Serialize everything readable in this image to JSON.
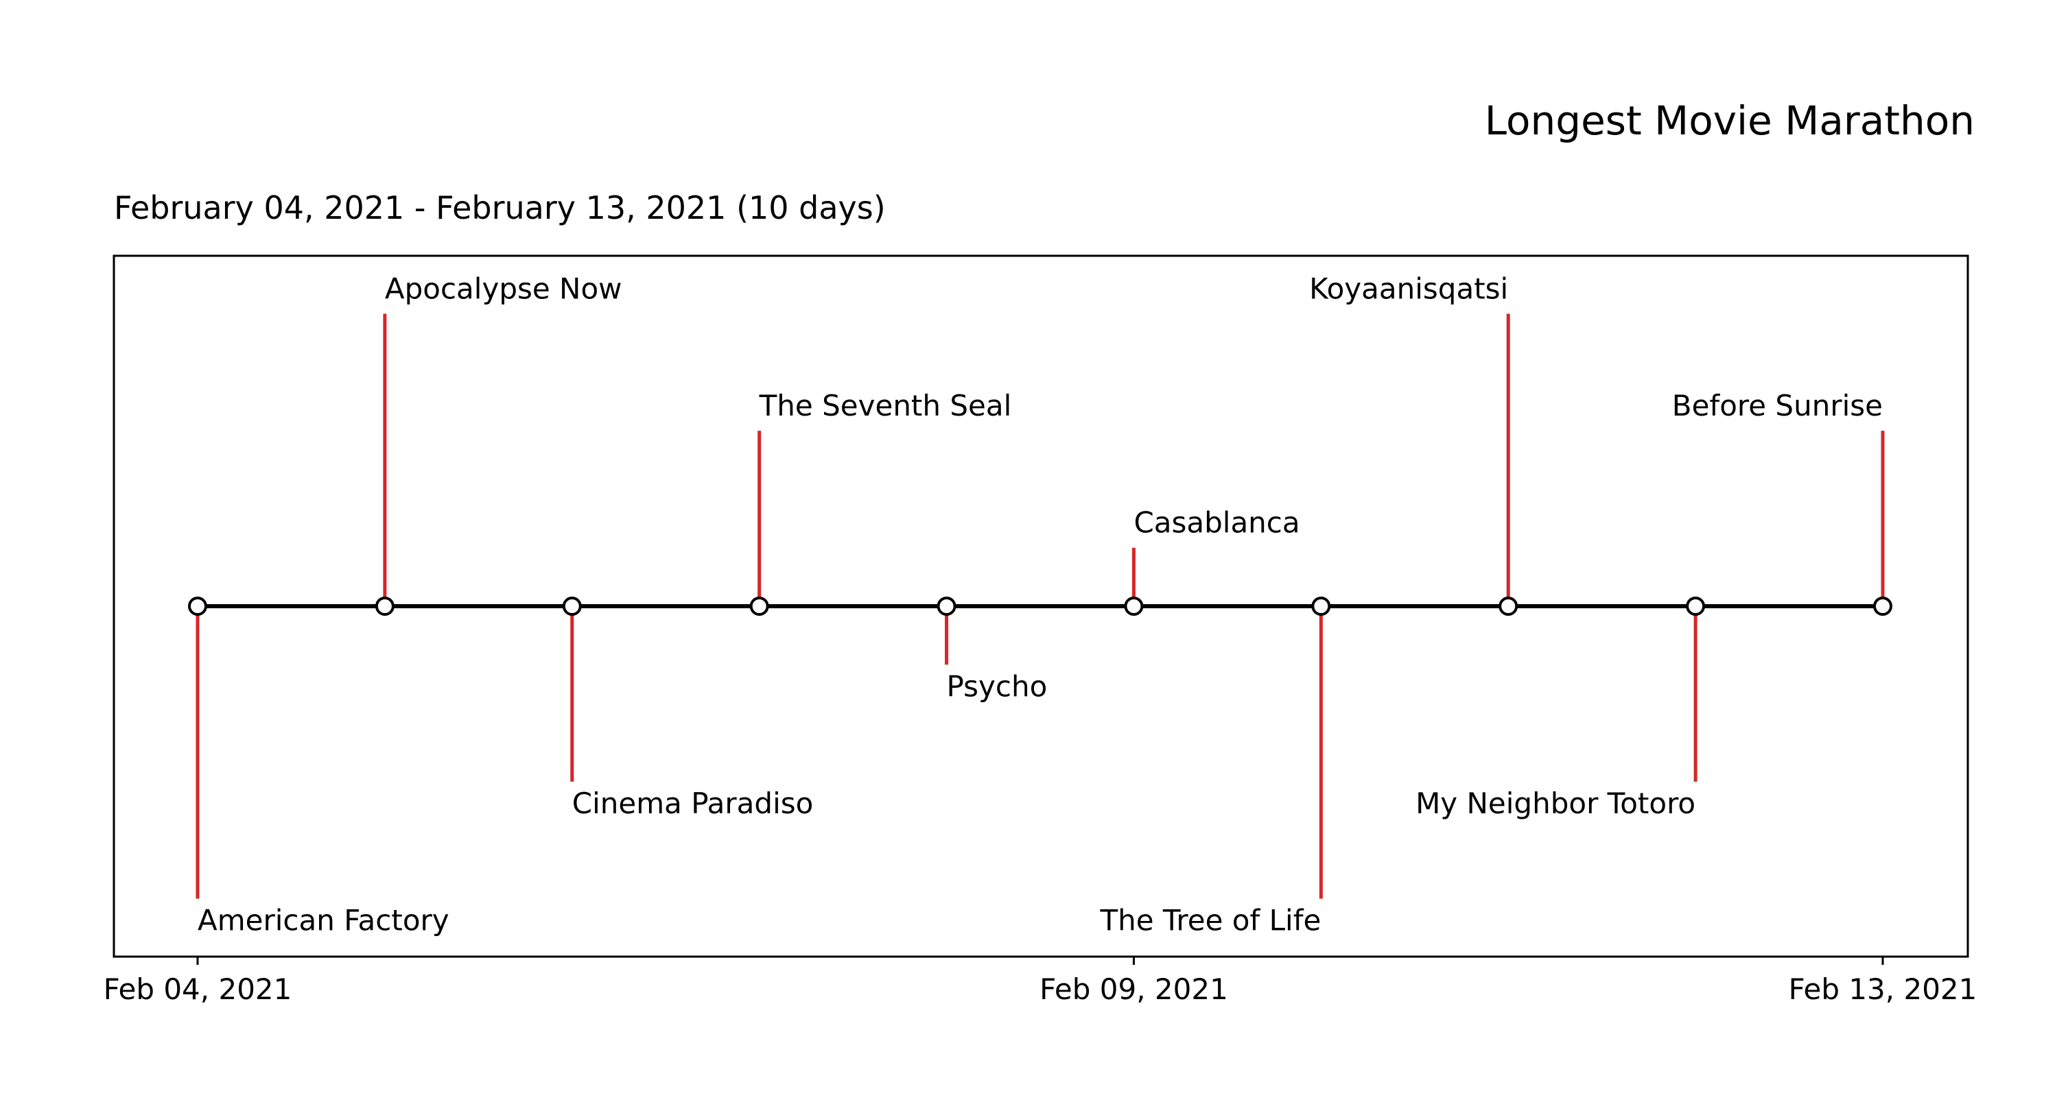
{
  "chart_data": {
    "type": "timeline",
    "title": "Longest Movie Marathon",
    "subtitle": "February 04, 2021 - February 13, 2021 (10 days)",
    "x_tick_labels": [
      {
        "date": "2021-02-04",
        "label": "Feb 04, 2021"
      },
      {
        "date": "2021-02-09",
        "label": "Feb 09, 2021"
      },
      {
        "date": "2021-02-13",
        "label": "Feb 13, 2021"
      }
    ],
    "events": [
      {
        "date": "2021-02-04",
        "label": "American Factory",
        "level": -5
      },
      {
        "date": "2021-02-05",
        "label": "Apocalypse Now",
        "level": 5
      },
      {
        "date": "2021-02-06",
        "label": "Cinema Paradiso",
        "level": -3
      },
      {
        "date": "2021-02-07",
        "label": "The Seventh Seal",
        "level": 3
      },
      {
        "date": "2021-02-08",
        "label": "Psycho",
        "level": -1
      },
      {
        "date": "2021-02-09",
        "label": "Casablanca",
        "level": 1
      },
      {
        "date": "2021-02-10",
        "label": "The Tree of Life",
        "level": -5
      },
      {
        "date": "2021-02-11",
        "label": "Koyaanisqatsi",
        "level": 5
      },
      {
        "date": "2021-02-12",
        "label": "My Neighbor Totoro",
        "level": -3
      },
      {
        "date": "2021-02-13",
        "label": "Before Sunrise",
        "level": 3
      }
    ],
    "colors": {
      "stem": "#d62728",
      "axis": "#000000",
      "marker_fill": "#ffffff",
      "marker_edge": "#000000"
    }
  }
}
